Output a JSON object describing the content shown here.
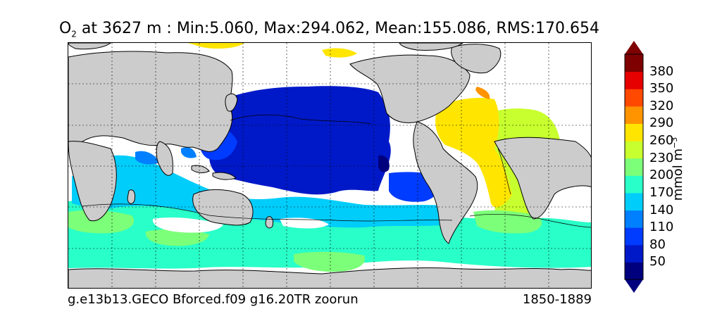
{
  "title": {
    "variable": "O",
    "subscript": "2",
    "text": " at 3627 m : Min:5.060, Max:294.062, Mean:155.086, RMS:170.654"
  },
  "footer": {
    "left": "g.e13b13.GECO Bforced.f09 g16.20TR zoorun",
    "right": "1850-1889"
  },
  "colorbar": {
    "units_text": "mmol m",
    "units_exponent": "−3",
    "ticks": [
      "50",
      "80",
      "110",
      "140",
      "170",
      "200",
      "230",
      "260",
      "290",
      "320",
      "350",
      "380"
    ],
    "colors": [
      "#00007f",
      "#0019c8",
      "#003cff",
      "#0080ff",
      "#00cdfa",
      "#29ffc8",
      "#7cff79",
      "#c8ff2e",
      "#ffe500",
      "#ff9400",
      "#ff4900",
      "#e60000",
      "#7f0000"
    ],
    "extend": "both"
  },
  "map": {
    "land_color": "#cccccc",
    "missing_color": "#ffffff",
    "grid": "dotted"
  }
}
